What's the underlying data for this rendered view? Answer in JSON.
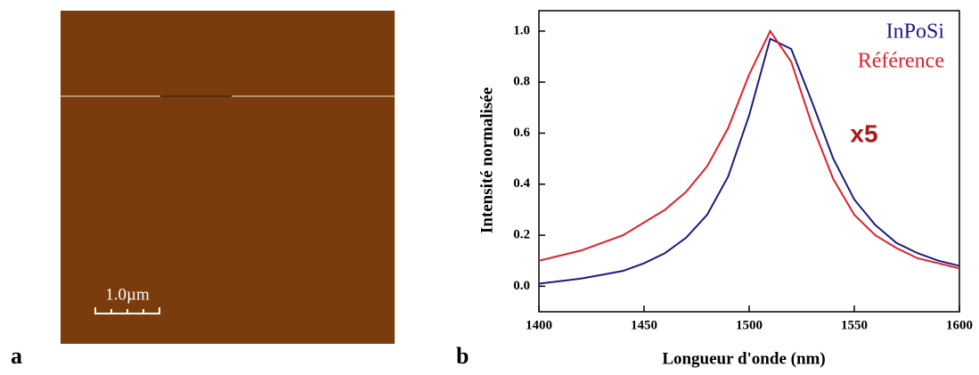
{
  "panel_labels": [
    "a",
    "b"
  ],
  "scale_bar": "1.0µm",
  "chart_data": {
    "type": "line",
    "xlabel": "Longueur d'onde (nm)",
    "ylabel": "Intensité normalisée",
    "annotation": "x5",
    "x": [
      1400,
      1410,
      1420,
      1430,
      1440,
      1450,
      1460,
      1470,
      1480,
      1490,
      1500,
      1510,
      1520,
      1530,
      1540,
      1550,
      1560,
      1570,
      1580,
      1590,
      1600
    ],
    "series": [
      {
        "name": "InPoSi",
        "color": "#1c1c80",
        "values": [
          0.01,
          0.02,
          0.03,
          0.045,
          0.06,
          0.09,
          0.13,
          0.19,
          0.28,
          0.43,
          0.67,
          0.97,
          0.93,
          0.72,
          0.5,
          0.34,
          0.24,
          0.17,
          0.13,
          0.1,
          0.08
        ]
      },
      {
        "name": "Référence",
        "color": "#e0202a",
        "values": [
          0.1,
          0.12,
          0.14,
          0.17,
          0.2,
          0.25,
          0.3,
          0.37,
          0.47,
          0.62,
          0.83,
          1.0,
          0.88,
          0.63,
          0.42,
          0.28,
          0.2,
          0.15,
          0.11,
          0.09,
          0.07
        ]
      }
    ],
    "xlim": [
      1400,
      1600
    ],
    "ylim": [
      -0.1,
      1.08
    ],
    "xticks": [
      1400,
      1450,
      1500,
      1550,
      1600
    ],
    "yticks": [
      {
        "value": 0,
        "label": "0.0"
      },
      0.2,
      0.4,
      0.6,
      0.8,
      {
        "value": 1,
        "label": "1.0"
      }
    ]
  }
}
